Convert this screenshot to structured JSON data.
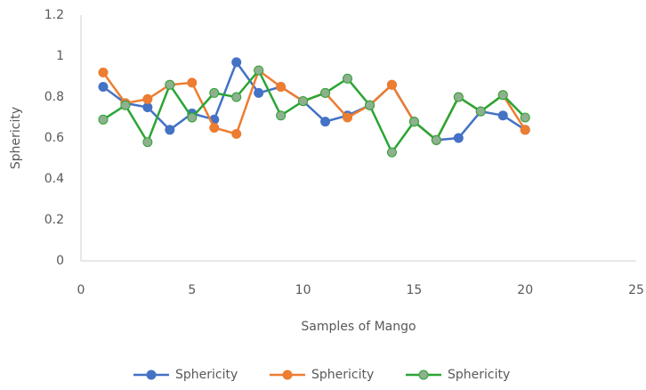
{
  "chart_data": {
    "type": "line",
    "x_label": "Samples of Mango",
    "y_label": "Sphericity",
    "x": [
      1,
      2,
      3,
      4,
      5,
      6,
      7,
      8,
      9,
      10,
      11,
      12,
      13,
      14,
      15,
      16,
      17,
      18,
      19,
      20
    ],
    "series": [
      {
        "name": "Sphericity",
        "color": "#4472c4",
        "marker_color": "#4472c4",
        "values": [
          0.85,
          0.77,
          0.75,
          0.64,
          0.72,
          0.69,
          0.97,
          0.82,
          0.85,
          0.78,
          0.68,
          0.71,
          0.76,
          0.86,
          0.68,
          0.59,
          0.6,
          0.73,
          0.71,
          0.64
        ]
      },
      {
        "name": "Sphericity",
        "color": "#ed7d31",
        "marker_color": "#ed7d31",
        "values": [
          0.92,
          0.77,
          0.79,
          0.86,
          0.87,
          0.65,
          0.62,
          0.93,
          0.85,
          0.78,
          0.82,
          0.7,
          0.76,
          0.86,
          0.68,
          0.59,
          0.8,
          0.73,
          0.81,
          0.64
        ]
      },
      {
        "name": "Sphericity",
        "color": "#2aa534",
        "marker_color": "#8fb08f",
        "values": [
          0.69,
          0.76,
          0.58,
          0.86,
          0.7,
          0.82,
          0.8,
          0.93,
          0.71,
          0.78,
          0.82,
          0.89,
          0.76,
          0.53,
          0.68,
          0.59,
          0.8,
          0.73,
          0.81,
          0.7
        ]
      }
    ],
    "xlim": [
      0,
      25
    ],
    "xticks": [
      0,
      5,
      10,
      15,
      20,
      25
    ],
    "ylim": [
      0,
      1.2
    ],
    "yticks": [
      0,
      0.2,
      0.4,
      0.6,
      0.8,
      1,
      1.2
    ],
    "grid": false
  }
}
